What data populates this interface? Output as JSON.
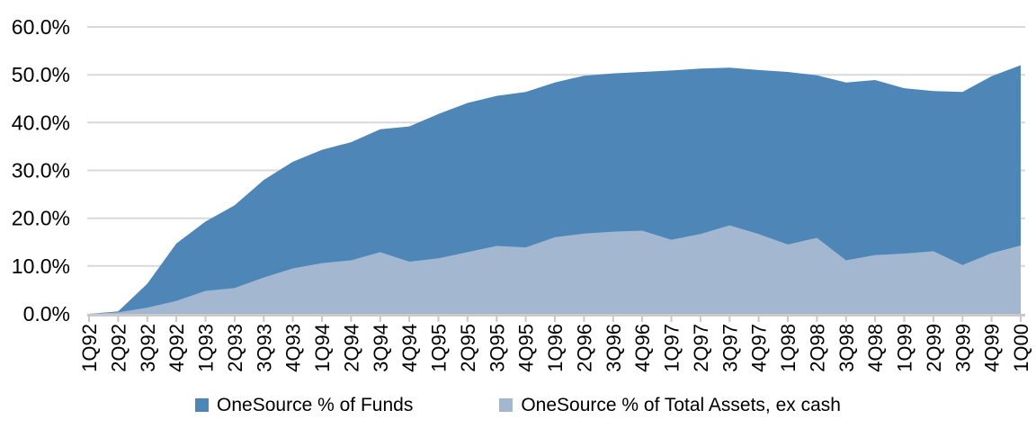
{
  "chart_data": {
    "type": "area",
    "title": "",
    "xlabel": "",
    "ylabel": "",
    "categories": [
      "1Q92",
      "2Q92",
      "3Q92",
      "4Q92",
      "1Q93",
      "2Q93",
      "3Q93",
      "4Q93",
      "1Q94",
      "2Q94",
      "3Q94",
      "4Q94",
      "1Q95",
      "2Q95",
      "3Q95",
      "4Q95",
      "1Q96",
      "2Q96",
      "3Q96",
      "4Q96",
      "1Q97",
      "2Q97",
      "3Q97",
      "4Q97",
      "1Q98",
      "2Q98",
      "3Q98",
      "4Q98",
      "1Q99",
      "2Q99",
      "3Q99",
      "4Q99",
      "1Q00"
    ],
    "series": [
      {
        "name": "OneSource % of Funds",
        "color": "#4E86B8",
        "values": [
          0.0,
          0.5,
          6.3,
          14.7,
          19.3,
          22.7,
          28.0,
          31.8,
          34.3,
          35.9,
          38.6,
          39.2,
          41.8,
          44.1,
          45.6,
          46.4,
          48.4,
          49.8,
          50.3,
          50.6,
          50.9,
          51.3,
          51.5,
          51.0,
          50.6,
          49.9,
          48.4,
          48.9,
          47.2,
          46.6,
          46.4,
          49.7,
          52.0
        ]
      },
      {
        "name": "OneSource % of Total Assets, ex cash",
        "color": "#A4B7D1",
        "values": [
          0.0,
          0.3,
          1.3,
          2.7,
          4.8,
          5.4,
          7.6,
          9.5,
          10.6,
          11.2,
          12.9,
          10.9,
          11.6,
          12.9,
          14.2,
          13.9,
          16.0,
          16.8,
          17.2,
          17.4,
          15.5,
          16.7,
          18.5,
          16.7,
          14.5,
          15.9,
          11.2,
          12.3,
          12.6,
          13.1,
          10.2,
          12.7,
          14.3
        ]
      }
    ],
    "ylim": [
      0,
      60
    ],
    "y_ticks": [
      0,
      10,
      20,
      30,
      40,
      50,
      60
    ],
    "y_tick_labels": [
      "0.0%",
      "10.0%",
      "20.0%",
      "30.0%",
      "40.0%",
      "50.0%",
      "60.0%"
    ],
    "grid": true,
    "legend_position": "bottom",
    "series_overlap": true
  },
  "colors": {
    "grid": "#D9D9D9",
    "axis": "#C9C9C9",
    "text": "#000000",
    "background": "#FFFFFF"
  }
}
